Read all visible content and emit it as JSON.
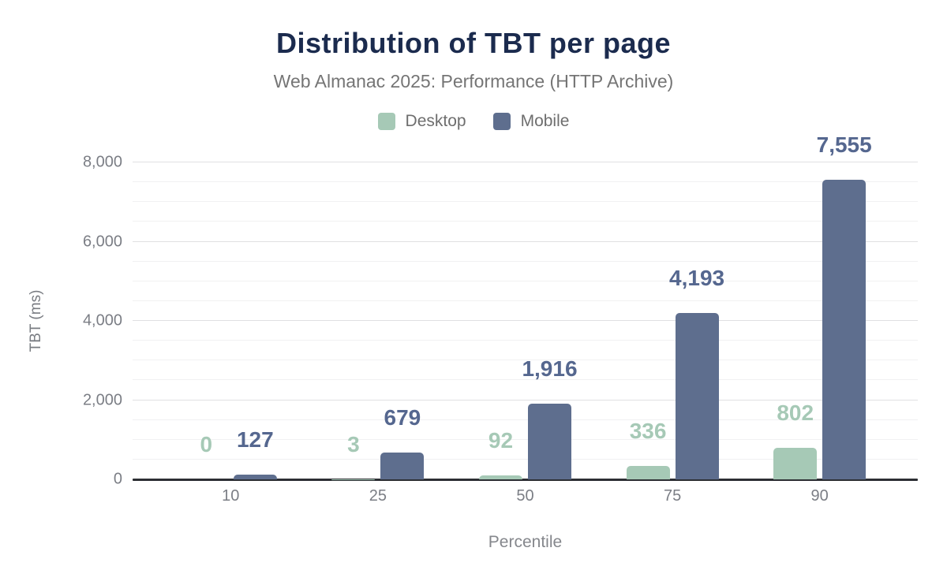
{
  "title": "Distribution of TBT per page",
  "subtitle": "Web Almanac 2025: Performance (HTTP Archive)",
  "colors": {
    "title": "#1b2b4e",
    "desktop": "#a6c9b6",
    "mobile": "#5e6e8e",
    "desktop_label": "#a6c9b6",
    "mobile_label": "#55678f"
  },
  "legend": [
    {
      "label": "Desktop",
      "color": "#a6c9b6"
    },
    {
      "label": "Mobile",
      "color": "#5e6e8e"
    }
  ],
  "chart_data": {
    "type": "bar",
    "title": "Distribution of TBT per page",
    "subtitle": "Web Almanac 2025: Performance (HTTP Archive)",
    "categories": [
      "10",
      "25",
      "50",
      "75",
      "90"
    ],
    "series": [
      {
        "name": "Desktop",
        "color": "#a6c9b6",
        "label_color": "#a6c9b6",
        "values": [
          0,
          3,
          92,
          336,
          802
        ],
        "labels": [
          "0",
          "3",
          "92",
          "336",
          "802"
        ]
      },
      {
        "name": "Mobile",
        "color": "#5e6e8e",
        "label_color": "#55678f",
        "values": [
          127,
          679,
          1916,
          4193,
          7555
        ],
        "labels": [
          "127",
          "679",
          "1,916",
          "4,193",
          "7,555"
        ]
      }
    ],
    "xlabel": "Percentile",
    "ylabel": "TBT (ms)",
    "ylim": [
      0,
      8000
    ],
    "ytick_step": 2000,
    "minor_grid_step": 500,
    "yticks": [
      "0",
      "2,000",
      "4,000",
      "6,000",
      "8,000"
    ],
    "grid": true,
    "legend_position": "top"
  }
}
